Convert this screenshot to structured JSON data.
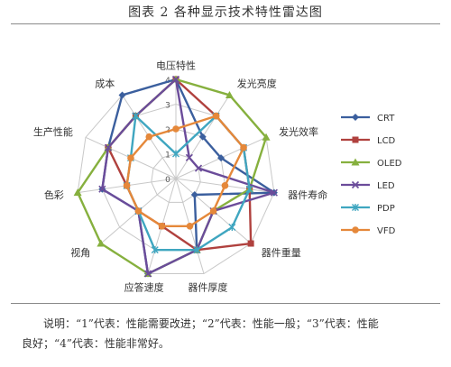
{
  "figure": {
    "title": "图表 2  各种显示技术特性雷达图",
    "note_line1": "说明：“1”代表：性能需要改进；“2”代表：性能一般；“3”代表：性能",
    "note_line2": "良好；“4”代表：性能非常好。"
  },
  "chart_data": {
    "type": "radar",
    "axes": [
      "电压特性",
      "发光亮度",
      "发光效率",
      "器件寿命",
      "器件重量",
      "器件厚度",
      "应答速度",
      "视角",
      "色彩",
      "生产性能",
      "成本"
    ],
    "range": [
      0,
      4
    ],
    "ticks": [
      "0",
      "1",
      "2",
      "3",
      "4"
    ],
    "legend_position": "right",
    "series": [
      {
        "name": "CRT",
        "color": "#3b5f9e",
        "values": [
          4,
          2,
          2,
          4,
          1,
          3,
          4,
          2,
          3,
          3,
          4
        ]
      },
      {
        "name": "LCD",
        "color": "#b0413e",
        "values": [
          4,
          3,
          3,
          3,
          4,
          3,
          2,
          2,
          2,
          3,
          3
        ]
      },
      {
        "name": "OLED",
        "color": "#86b03e",
        "values": [
          4,
          4,
          4,
          3,
          2,
          3,
          4,
          4,
          4,
          3,
          3
        ]
      },
      {
        "name": "LED",
        "color": "#6b4c9a",
        "values": [
          4,
          1,
          1,
          4,
          2,
          3,
          4,
          2,
          3,
          3,
          3
        ]
      },
      {
        "name": "PDP",
        "color": "#3fa6c0",
        "values": [
          1,
          3,
          3,
          3,
          3,
          3,
          3,
          2,
          2,
          2,
          3
        ]
      },
      {
        "name": "VFD",
        "color": "#e5883a",
        "values": [
          2,
          3,
          3,
          2,
          2,
          2,
          2,
          2,
          2,
          2,
          2
        ]
      }
    ]
  }
}
